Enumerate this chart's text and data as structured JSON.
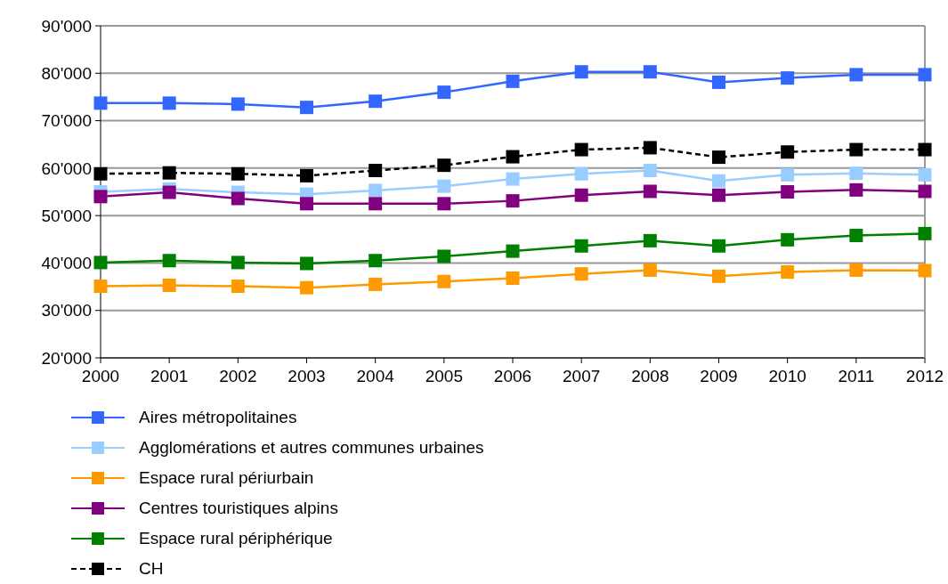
{
  "chart_data": {
    "type": "line",
    "categories": [
      "2000",
      "2001",
      "2002",
      "2003",
      "2004",
      "2005",
      "2006",
      "2007",
      "2008",
      "2009",
      "2010",
      "2011",
      "2012"
    ],
    "ylim": [
      20000,
      90000
    ],
    "yticks": [
      {
        "value": 20000,
        "label": "20'000"
      },
      {
        "value": 30000,
        "label": "30'000"
      },
      {
        "value": 40000,
        "label": "40'000"
      },
      {
        "value": 50000,
        "label": "50'000"
      },
      {
        "value": 60000,
        "label": "60'000"
      },
      {
        "value": 70000,
        "label": "70'000"
      },
      {
        "value": 80000,
        "label": "80'000"
      },
      {
        "value": 90000,
        "label": "90'000"
      }
    ],
    "grid": "y",
    "legend": "bottom",
    "marker": "square",
    "line_style": "solid",
    "series": [
      {
        "name": "Aires métropolitaines",
        "color": "#3366ff",
        "values": [
          73700,
          73700,
          73500,
          72800,
          74100,
          76000,
          78300,
          80300,
          80300,
          78100,
          79000,
          79700,
          79700
        ]
      },
      {
        "name": "Agglomérations et autres communes urbaines",
        "color": "#99ccff",
        "values": [
          55000,
          55600,
          54900,
          54500,
          55300,
          56200,
          57700,
          58800,
          59500,
          57300,
          58600,
          58900,
          58600
        ]
      },
      {
        "name": "Espace rural périurbain",
        "color": "#ff9900",
        "values": [
          35100,
          35300,
          35100,
          34800,
          35500,
          36100,
          36800,
          37700,
          38500,
          37200,
          38100,
          38500,
          38400
        ]
      },
      {
        "name": "Centres touristiques alpins",
        "color": "#800080",
        "values": [
          54000,
          54900,
          53600,
          52500,
          52500,
          52500,
          53100,
          54300,
          55100,
          54300,
          55000,
          55400,
          55100
        ]
      },
      {
        "name": "Espace rural périphérique",
        "color": "#008000",
        "values": [
          40100,
          40500,
          40100,
          39900,
          40500,
          41400,
          42500,
          43600,
          44700,
          43600,
          44900,
          45800,
          46200
        ]
      },
      {
        "name": "CH",
        "color": "#000000",
        "line_style": "dashed",
        "values": [
          58800,
          59000,
          58800,
          58400,
          59500,
          60600,
          62400,
          63900,
          64300,
          62300,
          63400,
          63900,
          63900
        ]
      }
    ]
  }
}
